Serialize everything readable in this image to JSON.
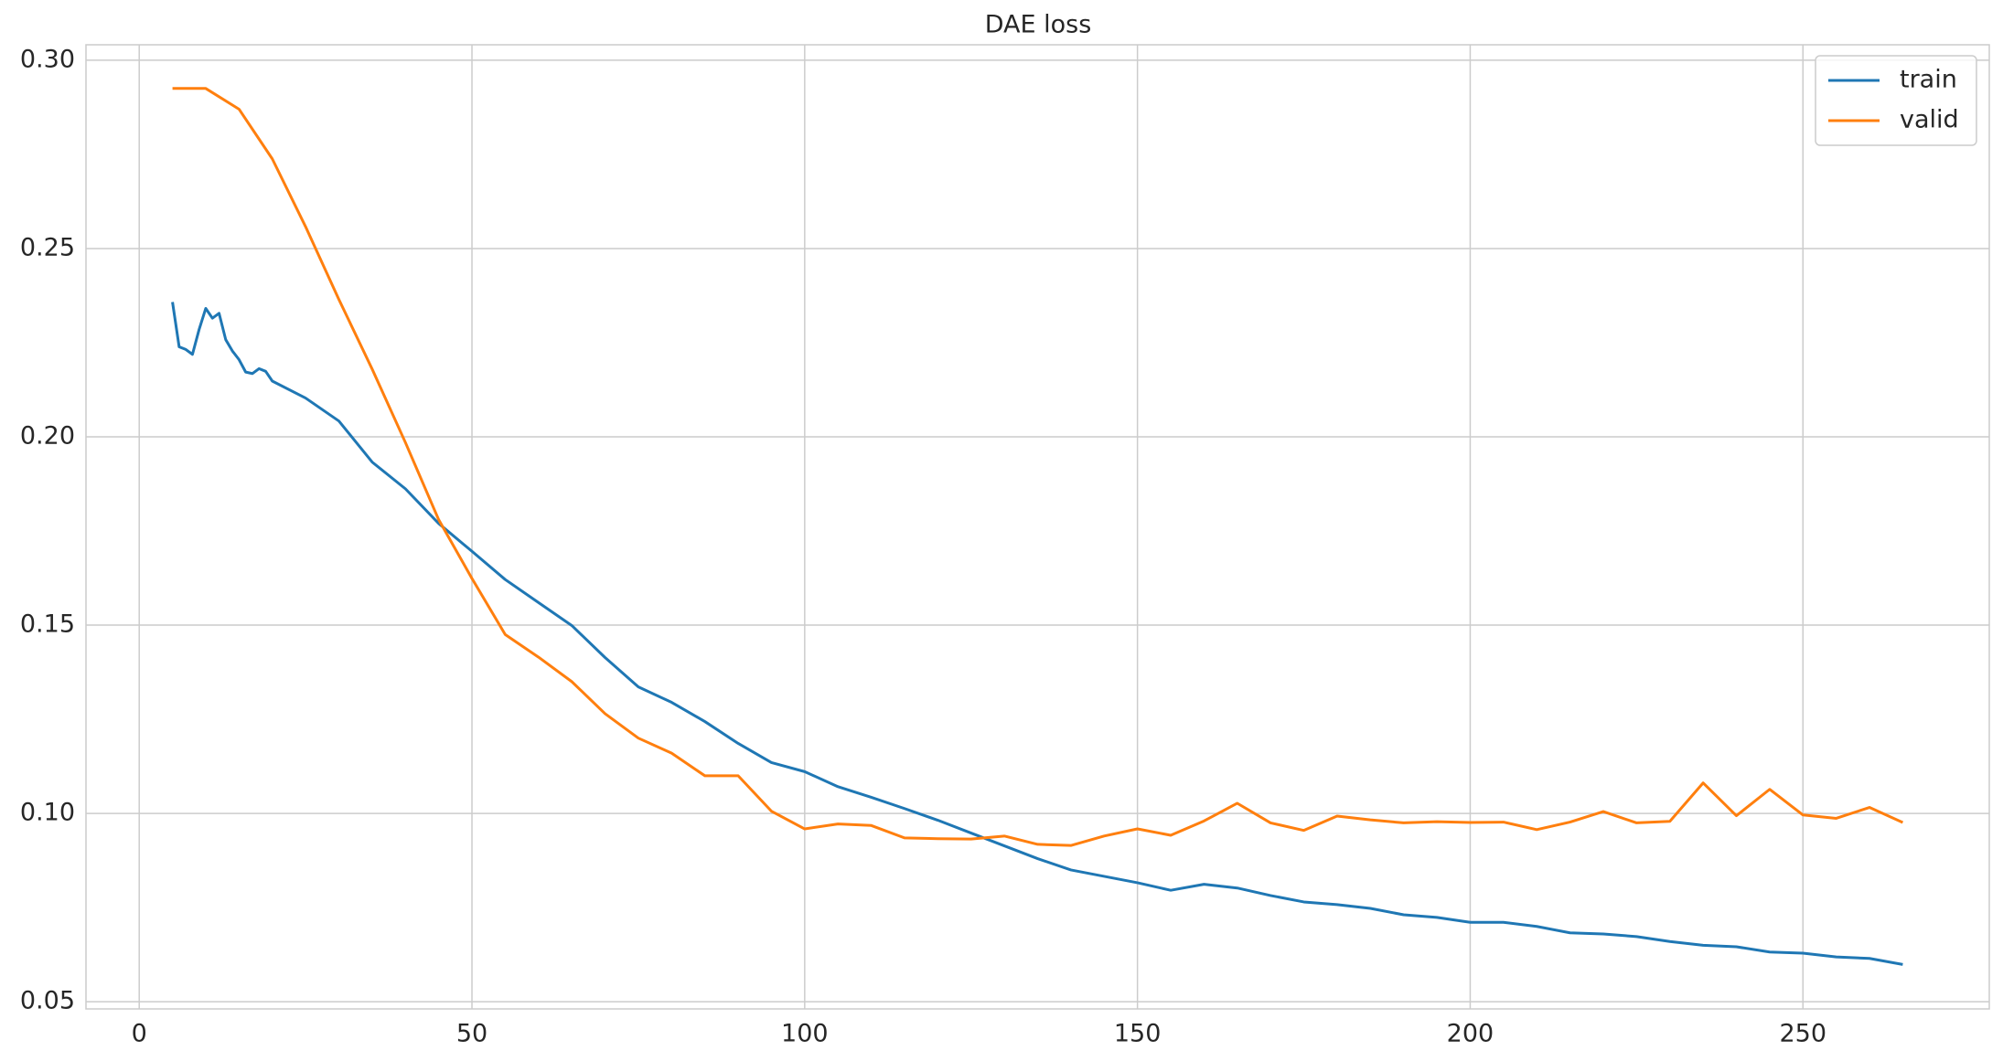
{
  "chart_data": {
    "type": "line",
    "title": "DAE loss",
    "xlim": [
      -8,
      278
    ],
    "xticks": [
      0,
      50,
      100,
      150,
      200,
      250
    ],
    "ylim": [
      0.0481,
      0.3041
    ],
    "yticks": [
      0.05,
      {
        "value": 0.1,
        "label": "0.10"
      },
      0.15,
      {
        "value": 0.2,
        "label": "0.20"
      },
      0.25,
      {
        "value": 0.3,
        "label": "0.30"
      }
    ],
    "grid": true,
    "legend": "upper right",
    "series": [
      {
        "name": "train",
        "color": "#1f77b4",
        "x": [
          5,
          6,
          7,
          8,
          9,
          10,
          11,
          12,
          13,
          14,
          15,
          16,
          17,
          18,
          19,
          20,
          25,
          30,
          35,
          40,
          45,
          50,
          55,
          60,
          65,
          70,
          75,
          80,
          85,
          90,
          95,
          100,
          105,
          110,
          115,
          120,
          125,
          130,
          135,
          140,
          145,
          150,
          155,
          160,
          165,
          170,
          175,
          180,
          185,
          190,
          195,
          200,
          205,
          210,
          215,
          220,
          225,
          230,
          235,
          240,
          245,
          250,
          255,
          260,
          265
        ],
        "values": [
          0.2358,
          0.2239,
          0.2232,
          0.2219,
          0.2285,
          0.2341,
          0.2315,
          0.2328,
          0.2258,
          0.2228,
          0.2205,
          0.2172,
          0.2168,
          0.2181,
          0.2174,
          0.2148,
          0.2103,
          0.2042,
          0.1933,
          0.1862,
          0.177,
          0.1696,
          0.1621,
          0.156,
          0.1499,
          0.1414,
          0.1336,
          0.1295,
          0.1244,
          0.1186,
          0.1135,
          0.1111,
          0.1071,
          0.1043,
          0.1013,
          0.0982,
          0.0948,
          0.0914,
          0.088,
          0.085,
          0.0833,
          0.0816,
          0.0796,
          0.0812,
          0.0802,
          0.0782,
          0.0765,
          0.0758,
          0.0748,
          0.0731,
          0.0724,
          0.0711,
          0.0711,
          0.07,
          0.0683,
          0.068,
          0.0673,
          0.066,
          0.065,
          0.0646,
          0.0632,
          0.0629,
          0.0619,
          0.0615,
          0.0599
        ]
      },
      {
        "name": "valid",
        "color": "#ff7f0e",
        "x": [
          5,
          10,
          15,
          20,
          25,
          30,
          35,
          40,
          45,
          50,
          55,
          60,
          65,
          70,
          75,
          80,
          85,
          90,
          95,
          100,
          105,
          110,
          115,
          120,
          125,
          130,
          135,
          140,
          145,
          150,
          155,
          160,
          165,
          170,
          175,
          180,
          185,
          190,
          195,
          200,
          205,
          210,
          215,
          220,
          225,
          230,
          235,
          240,
          245,
          250,
          255,
          260,
          265
        ],
        "values": [
          0.2925,
          0.2925,
          0.287,
          0.2738,
          0.2558,
          0.2365,
          0.218,
          0.1985,
          0.178,
          0.1624,
          0.1475,
          0.1415,
          0.135,
          0.1265,
          0.12,
          0.116,
          0.11,
          0.11,
          0.1006,
          0.0959,
          0.0972,
          0.0968,
          0.0935,
          0.0933,
          0.0932,
          0.094,
          0.0918,
          0.0915,
          0.094,
          0.0959,
          0.0942,
          0.098,
          0.1027,
          0.0975,
          0.0955,
          0.0993,
          0.0983,
          0.0975,
          0.0978,
          0.0976,
          0.0977,
          0.0957,
          0.0977,
          0.1005,
          0.0975,
          0.0979,
          0.1081,
          0.0994,
          0.1064,
          0.0996,
          0.0987,
          0.1016,
          0.0976
        ]
      }
    ]
  }
}
